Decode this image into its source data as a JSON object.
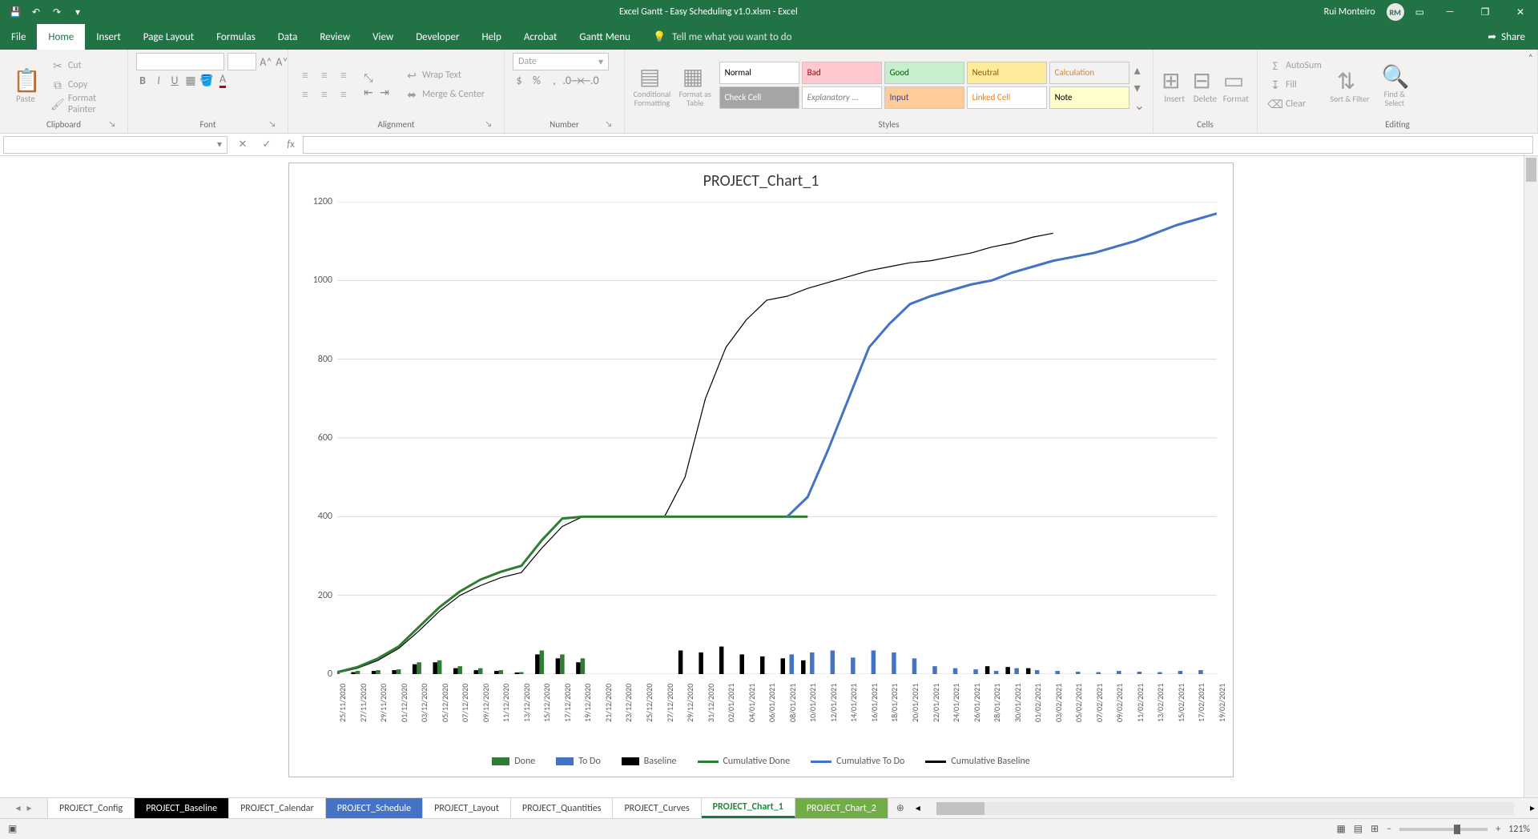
{
  "app": {
    "title": "Excel Gantt - Easy Scheduling v1.0.xlsm  -  Excel",
    "user_name": "Rui Monteiro",
    "share_label": "Share"
  },
  "tabs": {
    "items": [
      "File",
      "Home",
      "Insert",
      "Page Layout",
      "Formulas",
      "Data",
      "Review",
      "View",
      "Developer",
      "Help",
      "Acrobat",
      "Gantt Menu"
    ],
    "active_index": 1,
    "tell_me": "Tell me what you want to do"
  },
  "ribbon": {
    "clipboard": {
      "title": "Clipboard",
      "paste": "Paste",
      "cut": "Cut",
      "copy": "Copy",
      "fmt": "Format Painter"
    },
    "font": {
      "title": "Font"
    },
    "alignment": {
      "title": "Alignment",
      "wrap": "Wrap Text",
      "merge": "Merge & Center"
    },
    "number": {
      "title": "Number",
      "format": "Date"
    },
    "styles": {
      "title": "Styles",
      "cond": "Conditional Formatting",
      "fmtas": "Format as Table",
      "gallery": [
        {
          "label": "Normal",
          "bg": "#ffffff",
          "fg": "#000"
        },
        {
          "label": "Bad",
          "bg": "#ffc7ce",
          "fg": "#9c0006"
        },
        {
          "label": "Good",
          "bg": "#c6efce",
          "fg": "#006100"
        },
        {
          "label": "Neutral",
          "bg": "#ffeb9c",
          "fg": "#9c5700"
        },
        {
          "label": "Calculation",
          "bg": "#f2f2f2",
          "fg": "#fa7d00"
        },
        {
          "label": "Check Cell",
          "bg": "#a5a5a5",
          "fg": "#ffffff"
        },
        {
          "label": "Explanatory ...",
          "bg": "#ffffff",
          "fg": "#7f7f7f"
        },
        {
          "label": "Input",
          "bg": "#ffcc99",
          "fg": "#3f3f76"
        },
        {
          "label": "Linked Cell",
          "bg": "#ffffff",
          "fg": "#fa7d00"
        },
        {
          "label": "Note",
          "bg": "#ffffcc",
          "fg": "#000"
        }
      ]
    },
    "cells": {
      "title": "Cells",
      "insert": "Insert",
      "delete": "Delete",
      "format": "Format"
    },
    "editing": {
      "title": "Editing",
      "autosum": "AutoSum",
      "fill": "Fill",
      "clear": "Clear",
      "sort": "Sort & Filter",
      "find": "Find & Select"
    }
  },
  "sheet_tabs": [
    {
      "label": "PROJECT_Config",
      "bg": "#ffffff",
      "fg": "#444"
    },
    {
      "label": "PROJECT_Baseline",
      "bg": "#000000",
      "fg": "#ffffff"
    },
    {
      "label": "PROJECT_Calendar",
      "bg": "#ffffff",
      "fg": "#444"
    },
    {
      "label": "PROJECT_Schedule",
      "bg": "#4472c4",
      "fg": "#ffffff"
    },
    {
      "label": "PROJECT_Layout",
      "bg": "#ffffff",
      "fg": "#444"
    },
    {
      "label": "PROJECT_Quantities",
      "bg": "#ffffff",
      "fg": "#444"
    },
    {
      "label": "PROJECT_Curves",
      "bg": "#ffffff",
      "fg": "#444"
    },
    {
      "label": "PROJECT_Chart_1",
      "bg": "#ffffff",
      "fg": "#1f8a3b",
      "active": true
    },
    {
      "label": "PROJECT_Chart_2",
      "bg": "#70ad47",
      "fg": "#ffffff"
    }
  ],
  "status": {
    "zoom": "121%"
  },
  "chart": {
    "title": "PROJECT_Chart_1",
    "type": "combo-bar-line",
    "background": "#ffffff",
    "grid_color": "#d9d9d9",
    "text_color": "#595959",
    "label_fontsize": 12,
    "title_fontsize": 20,
    "ylim": [
      0,
      1200
    ],
    "ytick_step": 200,
    "categories": [
      "25/11/2020",
      "27/11/2020",
      "29/11/2020",
      "01/12/2020",
      "03/12/2020",
      "05/12/2020",
      "07/12/2020",
      "09/12/2020",
      "11/12/2020",
      "13/12/2020",
      "15/12/2020",
      "17/12/2020",
      "19/12/2020",
      "21/12/2020",
      "23/12/2020",
      "25/12/2020",
      "27/12/2020",
      "29/12/2020",
      "31/12/2020",
      "02/01/2021",
      "04/01/2021",
      "06/01/2021",
      "08/01/2021",
      "10/01/2021",
      "12/01/2021",
      "14/01/2021",
      "16/01/2021",
      "18/01/2021",
      "20/01/2021",
      "22/01/2021",
      "24/01/2021",
      "26/01/2021",
      "28/01/2021",
      "30/01/2021",
      "01/02/2021",
      "03/02/2021",
      "05/02/2021",
      "07/02/2021",
      "09/02/2021",
      "11/02/2021",
      "13/02/2021",
      "15/02/2021",
      "17/02/2021",
      "19/02/2021"
    ],
    "bar_done": {
      "color": "#2e7d32",
      "width": 0.35,
      "values": [
        5,
        8,
        10,
        12,
        30,
        35,
        20,
        15,
        10,
        5,
        60,
        50,
        40,
        0,
        0,
        0,
        0,
        0,
        0,
        0,
        0,
        0,
        0,
        0,
        0,
        0,
        0,
        0,
        0,
        0,
        0,
        0,
        0,
        0,
        0,
        0,
        0,
        0,
        0,
        0,
        0,
        0,
        0,
        0
      ]
    },
    "bar_todo": {
      "color": "#4472c4",
      "width": 0.35,
      "values": [
        0,
        0,
        0,
        0,
        0,
        0,
        0,
        0,
        0,
        0,
        0,
        0,
        0,
        0,
        0,
        0,
        0,
        0,
        0,
        0,
        0,
        0,
        50,
        55,
        60,
        42,
        60,
        55,
        40,
        20,
        15,
        12,
        8,
        15,
        10,
        8,
        6,
        5,
        8,
        6,
        5,
        8,
        10,
        12
      ]
    },
    "bar_baseline": {
      "color": "#000000",
      "width": 0.25,
      "values": [
        3,
        5,
        8,
        10,
        25,
        30,
        15,
        10,
        8,
        4,
        50,
        40,
        30,
        0,
        0,
        0,
        0,
        60,
        55,
        70,
        50,
        45,
        40,
        35,
        0,
        0,
        0,
        0,
        0,
        0,
        0,
        0,
        20,
        18,
        15,
        0,
        0,
        0,
        0,
        0,
        0,
        0,
        0,
        0
      ]
    },
    "cum_done": {
      "color": "#2e7d32",
      "width": 3,
      "values": [
        5,
        18,
        40,
        70,
        120,
        170,
        210,
        240,
        260,
        275,
        340,
        395,
        400,
        400,
        400,
        400,
        400,
        400,
        400,
        400,
        400,
        400,
        400,
        400,
        null,
        null,
        null,
        null,
        null,
        null,
        null,
        null,
        null,
        null,
        null,
        null,
        null,
        null,
        null,
        null,
        null,
        null,
        null,
        null
      ]
    },
    "cum_todo": {
      "color": "#4472c4",
      "width": 3,
      "values": [
        null,
        null,
        null,
        null,
        null,
        null,
        null,
        null,
        null,
        null,
        null,
        null,
        null,
        null,
        null,
        null,
        null,
        null,
        null,
        null,
        null,
        null,
        400,
        450,
        570,
        700,
        830,
        890,
        940,
        960,
        975,
        990,
        1000,
        1020,
        1035,
        1050,
        1060,
        1070,
        1085,
        1100,
        1120,
        1140,
        1155,
        1170
      ]
    },
    "cum_baseline": {
      "color": "#000000",
      "width": 1.2,
      "values": [
        3,
        15,
        35,
        65,
        110,
        160,
        200,
        225,
        245,
        258,
        320,
        375,
        400,
        400,
        400,
        400,
        400,
        500,
        700,
        830,
        900,
        950,
        960,
        980,
        995,
        1010,
        1025,
        1035,
        1045,
        1050,
        1060,
        1070,
        1085,
        1095,
        1110,
        1120,
        null,
        null,
        null,
        null,
        null,
        null,
        null,
        null
      ]
    },
    "legend": [
      {
        "label": "Done",
        "type": "bar",
        "color": "#2e7d32"
      },
      {
        "label": "To Do",
        "type": "bar",
        "color": "#4472c4"
      },
      {
        "label": "Baseline",
        "type": "bar",
        "color": "#000000"
      },
      {
        "label": "Cumulative Done",
        "type": "line",
        "color": "#2e7d32"
      },
      {
        "label": "Cumulative To Do",
        "type": "line",
        "color": "#4472c4"
      },
      {
        "label": "Cumulative Baseline",
        "type": "line",
        "color": "#000000"
      }
    ]
  }
}
